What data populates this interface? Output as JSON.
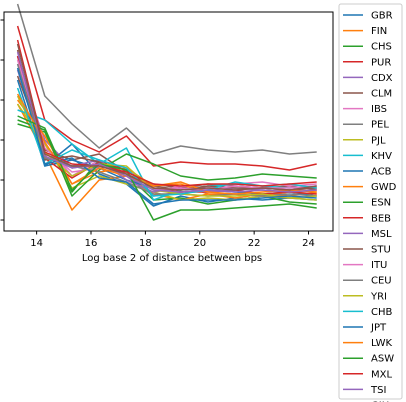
{
  "chart_data": {
    "type": "line",
    "title": "",
    "xlabel": "Log base 2 of distance between bps",
    "ylabel": "",
    "xlim": [
      12.8,
      24.9
    ],
    "ylim": [
      0,
      1
    ],
    "x_ticks": [
      14,
      16,
      18,
      20,
      22,
      24
    ],
    "y_tick_values": [
      0.0,
      0.2,
      0.4,
      0.6,
      0.8,
      1.0
    ],
    "y_tick_labels_visible": false,
    "grid": false,
    "legend_position": "right-outside",
    "x": [
      13.3,
      14.3,
      15.3,
      16.3,
      17.3,
      18.3,
      19.3,
      20.3,
      21.3,
      22.3,
      23.3,
      24.3
    ],
    "series": [
      {
        "name": "GBR",
        "color": "#1f77b4",
        "values": [
          0.82,
          0.27,
          0.38,
          0.23,
          0.18,
          0.07,
          0.12,
          0.09,
          0.11,
          0.1,
          0.11,
          0.1
        ]
      },
      {
        "name": "FIN",
        "color": "#ff7f0e",
        "values": [
          0.58,
          0.33,
          0.05,
          0.2,
          0.22,
          0.13,
          0.1,
          0.13,
          0.11,
          0.13,
          0.12,
          0.14
        ]
      },
      {
        "name": "CHS",
        "color": "#2ca02c",
        "values": [
          0.48,
          0.44,
          0.14,
          0.3,
          0.23,
          0.1,
          0.11,
          0.08,
          0.1,
          0.12,
          0.09,
          0.08
        ]
      },
      {
        "name": "PUR",
        "color": "#d62728",
        "values": [
          0.97,
          0.5,
          0.4,
          0.34,
          0.42,
          0.27,
          0.29,
          0.28,
          0.28,
          0.27,
          0.25,
          0.28
        ]
      },
      {
        "name": "CDX",
        "color": "#9467bd",
        "values": [
          0.78,
          0.4,
          0.26,
          0.28,
          0.22,
          0.12,
          0.14,
          0.15,
          0.16,
          0.15,
          0.14,
          0.15
        ]
      },
      {
        "name": "CLM",
        "color": "#8c564b",
        "values": [
          0.72,
          0.35,
          0.3,
          0.33,
          0.24,
          0.18,
          0.16,
          0.18,
          0.17,
          0.16,
          0.17,
          0.15
        ]
      },
      {
        "name": "IBS",
        "color": "#e377c2",
        "values": [
          0.82,
          0.38,
          0.22,
          0.3,
          0.2,
          0.14,
          0.17,
          0.16,
          0.18,
          0.19,
          0.17,
          0.18
        ]
      },
      {
        "name": "PEL",
        "color": "#7f7f7f",
        "values": [
          1.08,
          0.62,
          0.48,
          0.36,
          0.46,
          0.33,
          0.37,
          0.35,
          0.34,
          0.35,
          0.33,
          0.34
        ]
      },
      {
        "name": "PJL",
        "color": "#bcbd22",
        "values": [
          0.58,
          0.38,
          0.16,
          0.22,
          0.18,
          0.14,
          0.1,
          0.11,
          0.1,
          0.12,
          0.11,
          0.1
        ]
      },
      {
        "name": "KHV",
        "color": "#17becf",
        "values": [
          0.55,
          0.5,
          0.38,
          0.28,
          0.36,
          0.1,
          0.15,
          0.17,
          0.18,
          0.17,
          0.16,
          0.17
        ]
      },
      {
        "name": "ACB",
        "color": "#1f77b4",
        "values": [
          0.7,
          0.27,
          0.3,
          0.26,
          0.2,
          0.16,
          0.14,
          0.15,
          0.14,
          0.13,
          0.14,
          0.12
        ]
      },
      {
        "name": "GWD",
        "color": "#ff7f0e",
        "values": [
          0.6,
          0.42,
          0.18,
          0.24,
          0.26,
          0.17,
          0.18,
          0.13,
          0.13,
          0.12,
          0.14,
          0.13
        ]
      },
      {
        "name": "ESN",
        "color": "#2ca02c",
        "values": [
          0.5,
          0.45,
          0.12,
          0.25,
          0.33,
          0.28,
          0.22,
          0.2,
          0.21,
          0.23,
          0.22,
          0.21
        ]
      },
      {
        "name": "BEB",
        "color": "#d62728",
        "values": [
          0.82,
          0.31,
          0.21,
          0.29,
          0.25,
          0.16,
          0.14,
          0.14,
          0.15,
          0.13,
          0.14,
          0.13
        ]
      },
      {
        "name": "MSL",
        "color": "#9467bd",
        "values": [
          0.75,
          0.33,
          0.27,
          0.3,
          0.2,
          0.14,
          0.16,
          0.14,
          0.15,
          0.16,
          0.15,
          0.16
        ]
      },
      {
        "name": "STU",
        "color": "#8c564b",
        "values": [
          0.85,
          0.3,
          0.32,
          0.29,
          0.23,
          0.17,
          0.15,
          0.17,
          0.16,
          0.16,
          0.15,
          0.16
        ]
      },
      {
        "name": "ITU",
        "color": "#e377c2",
        "values": [
          0.8,
          0.36,
          0.24,
          0.26,
          0.22,
          0.15,
          0.16,
          0.15,
          0.17,
          0.16,
          0.16,
          0.17
        ]
      },
      {
        "name": "CEU",
        "color": "#7f7f7f",
        "values": [
          0.78,
          0.31,
          0.27,
          0.24,
          0.19,
          0.13,
          0.13,
          0.12,
          0.13,
          0.12,
          0.13,
          0.12
        ]
      },
      {
        "name": "YRI",
        "color": "#bcbd22",
        "values": [
          0.62,
          0.34,
          0.22,
          0.28,
          0.27,
          0.15,
          0.13,
          0.12,
          0.12,
          0.13,
          0.11,
          0.12
        ]
      },
      {
        "name": "CHB",
        "color": "#17becf",
        "values": [
          0.66,
          0.28,
          0.35,
          0.3,
          0.26,
          0.12,
          0.13,
          0.15,
          0.19,
          0.17,
          0.18,
          0.16
        ]
      },
      {
        "name": "JPT",
        "color": "#1f77b4",
        "values": [
          0.76,
          0.28,
          0.31,
          0.21,
          0.19,
          0.08,
          0.1,
          0.1,
          0.1,
          0.11,
          0.12,
          0.11
        ]
      },
      {
        "name": "LWK",
        "color": "#ff7f0e",
        "values": [
          0.63,
          0.39,
          0.18,
          0.26,
          0.22,
          0.17,
          0.19,
          0.14,
          0.13,
          0.14,
          0.15,
          0.14
        ]
      },
      {
        "name": "ASW",
        "color": "#2ca02c",
        "values": [
          0.52,
          0.46,
          0.15,
          0.28,
          0.25,
          0.0,
          0.05,
          0.05,
          0.06,
          0.07,
          0.08,
          0.06
        ]
      },
      {
        "name": "MXL",
        "color": "#d62728",
        "values": [
          0.9,
          0.34,
          0.28,
          0.27,
          0.24,
          0.18,
          0.17,
          0.18,
          0.18,
          0.17,
          0.18,
          0.19
        ]
      },
      {
        "name": "TSI",
        "color": "#9467bd",
        "values": [
          0.84,
          0.32,
          0.26,
          0.28,
          0.22,
          0.15,
          0.14,
          0.15,
          0.14,
          0.15,
          0.14,
          0.15
        ]
      },
      {
        "name": "GIH",
        "color": "#8c564b",
        "values": [
          0.88,
          0.33,
          0.27,
          0.27,
          0.23,
          0.16,
          0.15,
          0.16,
          0.15,
          0.16,
          0.15,
          0.17
        ]
      }
    ]
  }
}
